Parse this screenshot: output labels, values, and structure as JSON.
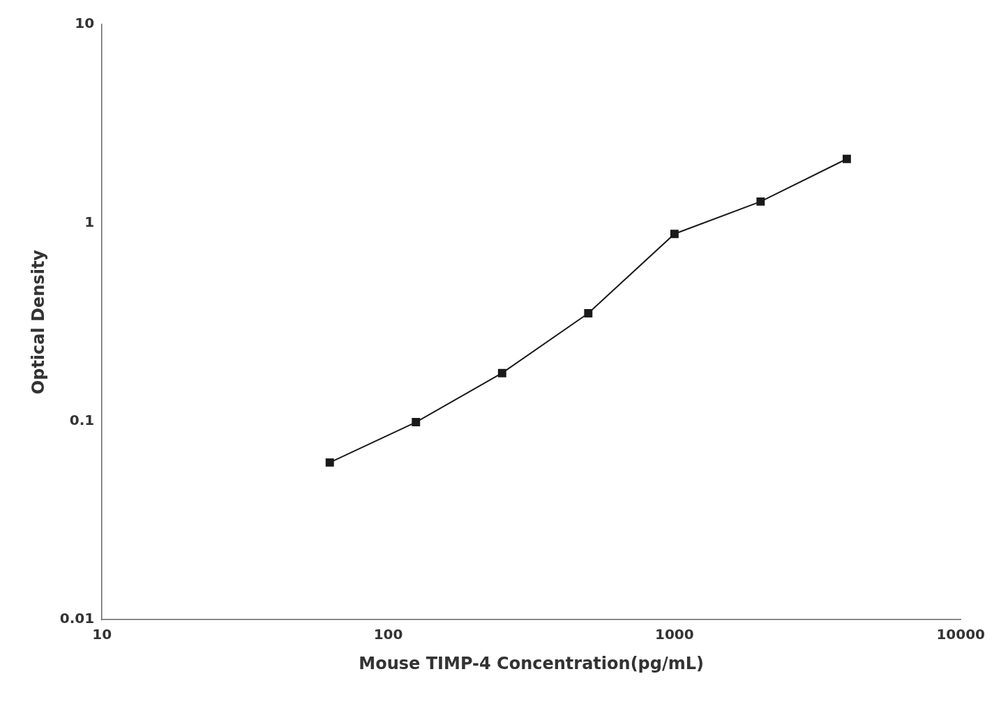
{
  "chart_data": {
    "type": "line",
    "x": [
      62.5,
      125,
      250,
      500,
      1000,
      2000,
      4000
    ],
    "values": [
      0.062,
      0.099,
      0.175,
      0.35,
      0.88,
      1.28,
      2.1
    ],
    "color": "#1a1a1a",
    "marker": "square",
    "xlabel": "Mouse TIMP-4 Concentration(pg/mL)",
    "ylabel": "Optical Density",
    "log": true,
    "xlim": [
      10,
      10000
    ],
    "ylim": [
      0.01,
      10
    ],
    "xticks": [
      10,
      100,
      1000,
      10000
    ],
    "yticks": [
      0.01,
      0.1,
      1,
      10
    ],
    "grid": false
  }
}
